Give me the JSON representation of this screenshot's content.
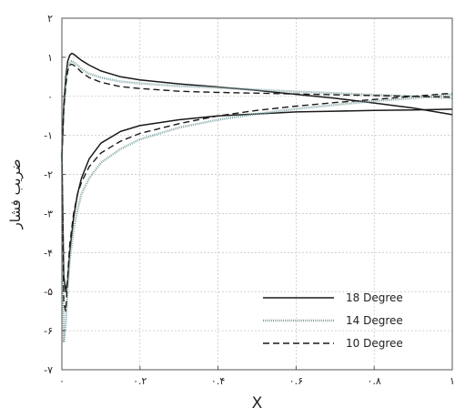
{
  "chart_data": {
    "type": "line",
    "title": "",
    "xlabel": "X",
    "ylabel": "ضریب فشار",
    "xlim": [
      0,
      1
    ],
    "ylim": [
      -7,
      2
    ],
    "grid": true,
    "legend_position": "bottom-right",
    "x_ticks": [
      {
        "value": 0,
        "label": "۰"
      },
      {
        "value": 0.2,
        "label": "۰.۲"
      },
      {
        "value": 0.4,
        "label": "۰.۴"
      },
      {
        "value": 0.6,
        "label": "۰.۶"
      },
      {
        "value": 0.8,
        "label": "۰.۸"
      },
      {
        "value": 1,
        "label": "۱"
      }
    ],
    "y_ticks": [
      {
        "value": 2,
        "label": "۲"
      },
      {
        "value": 1,
        "label": "۱"
      },
      {
        "value": 0,
        "label": "۰"
      },
      {
        "value": -1,
        "label": "-۱"
      },
      {
        "value": -2,
        "label": "-۲"
      },
      {
        "value": -3,
        "label": "-۳"
      },
      {
        "value": -4,
        "label": "-۴"
      },
      {
        "value": -5,
        "label": "-۵"
      },
      {
        "value": -6,
        "label": "-۶"
      },
      {
        "value": -7,
        "label": "-۷"
      }
    ],
    "series": [
      {
        "name": "18 Degree",
        "color": "#1a1a1a",
        "style": "solid",
        "segments": [
          {
            "x": [
              0.0,
              0.005,
              0.01,
              0.015,
              0.02,
              0.025,
              0.03,
              0.04,
              0.05,
              0.07,
              0.1,
              0.15,
              0.2,
              0.3,
              0.4,
              0.5,
              0.6,
              0.7,
              0.8,
              0.9,
              1.0
            ],
            "y": [
              -1.5,
              -0.2,
              0.5,
              0.9,
              1.05,
              1.1,
              1.08,
              1.0,
              0.92,
              0.8,
              0.65,
              0.5,
              0.42,
              0.32,
              0.24,
              0.15,
              0.05,
              -0.05,
              -0.17,
              -0.3,
              -0.47
            ]
          },
          {
            "x": [
              0.0,
              0.005,
              0.01,
              0.015,
              0.02,
              0.03,
              0.04,
              0.05,
              0.07,
              0.1,
              0.15,
              0.2,
              0.3,
              0.4,
              0.5,
              0.6,
              0.7,
              0.8,
              0.9,
              1.0
            ],
            "y": [
              -1.5,
              -4.6,
              -5.0,
              -4.7,
              -4.0,
              -3.1,
              -2.5,
              -2.1,
              -1.6,
              -1.2,
              -0.9,
              -0.75,
              -0.6,
              -0.5,
              -0.45,
              -0.4,
              -0.38,
              -0.36,
              -0.35,
              -0.33
            ]
          }
        ]
      },
      {
        "name": "14 Degree",
        "color": "#7fa3a3",
        "style": "dotted",
        "segments": [
          {
            "x": [
              0.0,
              0.005,
              0.01,
              0.015,
              0.02,
              0.025,
              0.03,
              0.04,
              0.05,
              0.07,
              0.1,
              0.15,
              0.2,
              0.3,
              0.4,
              0.5,
              0.6,
              0.7,
              0.8,
              0.9,
              1.0
            ],
            "y": [
              -1.5,
              -0.3,
              0.3,
              0.7,
              0.85,
              0.9,
              0.88,
              0.8,
              0.7,
              0.58,
              0.48,
              0.38,
              0.33,
              0.26,
              0.22,
              0.17,
              0.12,
              0.08,
              0.04,
              0.0,
              -0.05
            ]
          },
          {
            "x": [
              0.0,
              0.005,
              0.01,
              0.015,
              0.02,
              0.03,
              0.04,
              0.05,
              0.07,
              0.1,
              0.15,
              0.2,
              0.3,
              0.4,
              0.5,
              0.6,
              0.7,
              0.8,
              0.9,
              1.0
            ],
            "y": [
              -1.5,
              -6.3,
              -5.8,
              -4.9,
              -4.2,
              -3.4,
              -2.9,
              -2.5,
              -2.1,
              -1.7,
              -1.35,
              -1.1,
              -0.8,
              -0.6,
              -0.45,
              -0.32,
              -0.22,
              -0.12,
              -0.05,
              0.05
            ]
          }
        ]
      },
      {
        "name": "10 Degree",
        "color": "#1a1a1a",
        "style": "dashed",
        "segments": [
          {
            "x": [
              0.0,
              0.005,
              0.01,
              0.015,
              0.02,
              0.025,
              0.03,
              0.04,
              0.05,
              0.07,
              0.1,
              0.15,
              0.2,
              0.3,
              0.4,
              0.5,
              0.6,
              0.7,
              0.8,
              0.9,
              1.0
            ],
            "y": [
              -1.5,
              -0.3,
              0.3,
              0.65,
              0.8,
              0.82,
              0.8,
              0.72,
              0.62,
              0.48,
              0.36,
              0.25,
              0.2,
              0.13,
              0.1,
              0.08,
              0.06,
              0.04,
              0.02,
              0.0,
              -0.02
            ]
          },
          {
            "x": [
              0.0,
              0.005,
              0.01,
              0.015,
              0.02,
              0.03,
              0.04,
              0.05,
              0.07,
              0.1,
              0.15,
              0.2,
              0.3,
              0.4,
              0.5,
              0.6,
              0.7,
              0.8,
              0.9,
              1.0
            ],
            "y": [
              -1.5,
              -5.3,
              -5.5,
              -4.6,
              -3.8,
              -3.0,
              -2.5,
              -2.2,
              -1.8,
              -1.45,
              -1.15,
              -0.95,
              -0.7,
              -0.5,
              -0.36,
              -0.25,
              -0.16,
              -0.08,
              0.0,
              0.08
            ]
          }
        ]
      }
    ]
  }
}
